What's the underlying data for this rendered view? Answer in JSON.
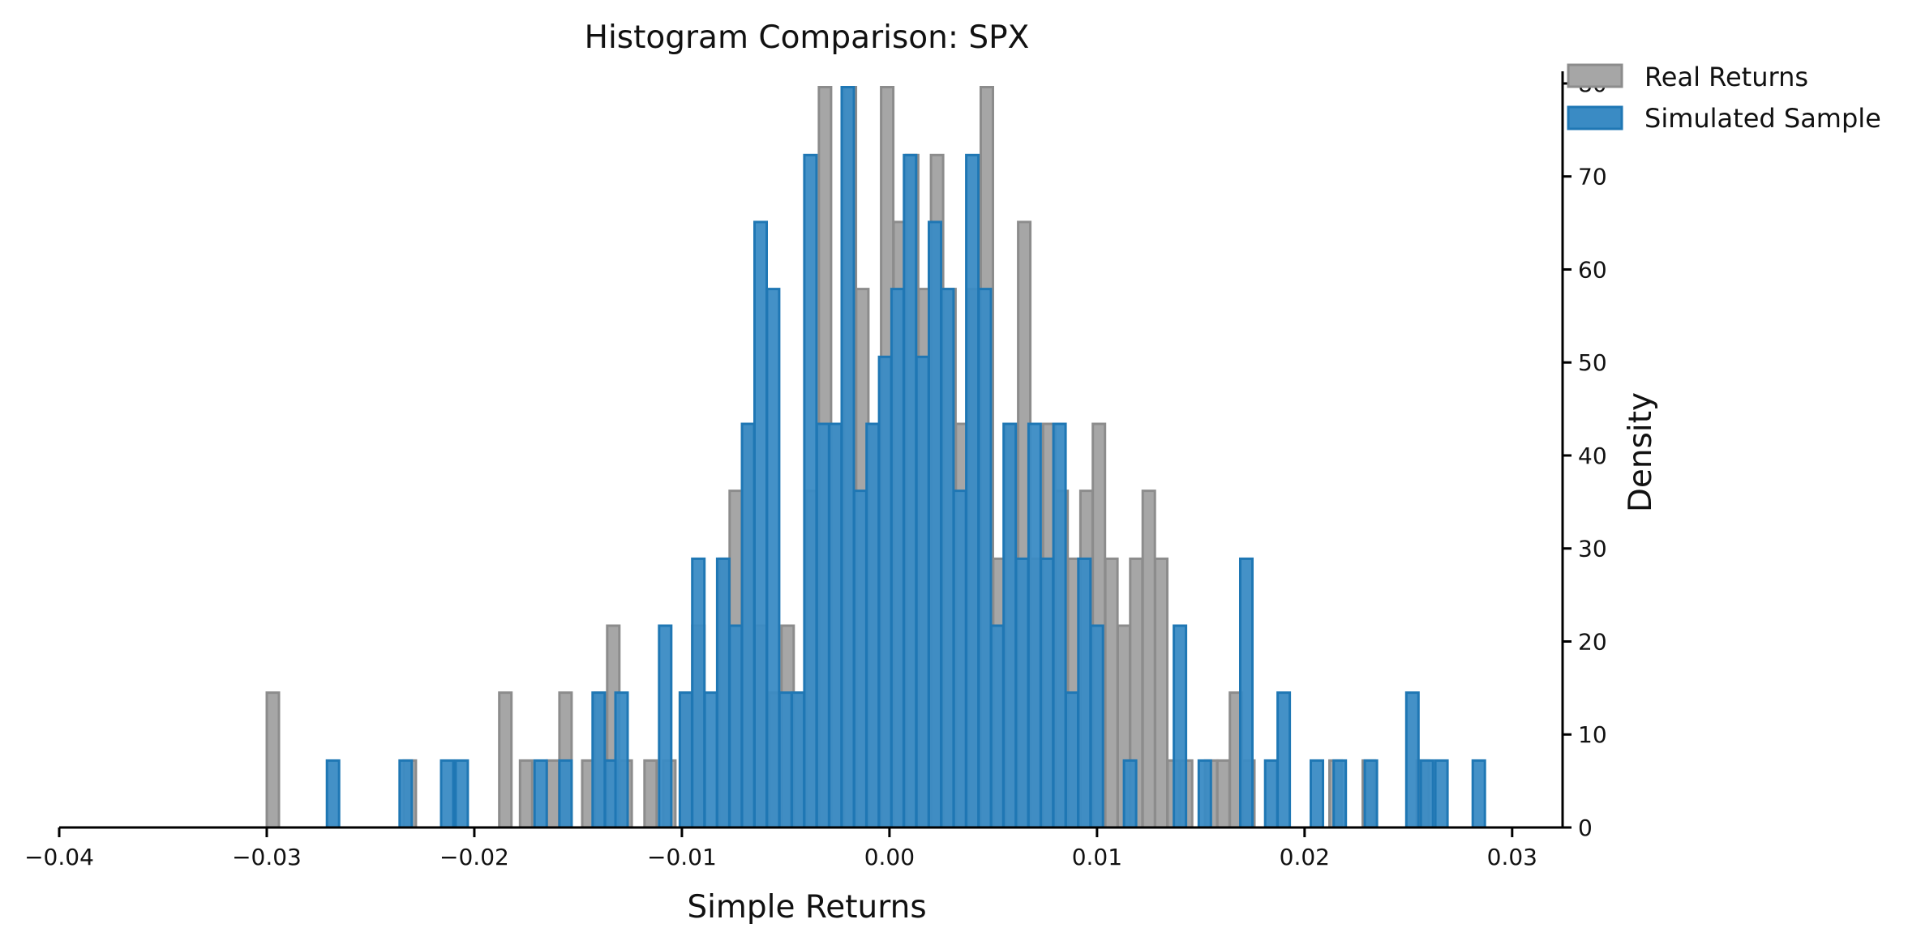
{
  "chart_data": {
    "type": "histogram",
    "title": "Histogram Comparison: SPX",
    "xlabel": "Simple Returns",
    "ylabel": "Density",
    "xlim": [
      -0.04,
      0.032
    ],
    "ylim": [
      0,
      82
    ],
    "xticks": [
      -0.04,
      -0.03,
      -0.02,
      -0.01,
      0.0,
      0.01,
      0.02,
      0.03
    ],
    "xtick_labels": [
      "−0.04",
      "−0.03",
      "−0.02",
      "−0.01",
      "0.00",
      "0.01",
      "0.02",
      "0.03"
    ],
    "yticks": [
      0,
      10,
      20,
      30,
      40,
      50,
      60,
      70,
      80
    ],
    "ytick_labels": [
      "0",
      "10",
      "20",
      "30",
      "40",
      "50",
      "60",
      "70",
      "80"
    ],
    "y_axis_side": "right",
    "grid": false,
    "legend_position": "top-right",
    "series": [
      {
        "name": "Real Returns",
        "style": "filled step histogram",
        "color": "#8c8c8c",
        "fill": "#a6a6a6",
        "bins": [
          [
            -0.03,
            14.5
          ],
          [
            -0.0234,
            7.2
          ],
          [
            -0.0188,
            14.5
          ],
          [
            -0.0178,
            7.2
          ],
          [
            -0.0165,
            7.2
          ],
          [
            -0.0159,
            14.5
          ],
          [
            -0.0148,
            7.2
          ],
          [
            -0.0142,
            14.5
          ],
          [
            -0.0136,
            21.7
          ],
          [
            -0.013,
            7.2
          ],
          [
            -0.0118,
            7.2
          ],
          [
            -0.0109,
            7.2
          ],
          [
            -0.0101,
            14.5
          ],
          [
            -0.0095,
            21.7
          ],
          [
            -0.0082,
            28.9
          ],
          [
            -0.0077,
            36.2
          ],
          [
            -0.0071,
            43.4
          ],
          [
            -0.0065,
            21.7
          ],
          [
            -0.0058,
            14.5
          ],
          [
            -0.0052,
            21.7
          ],
          [
            -0.0046,
            14.5
          ],
          [
            -0.004,
            36.2
          ],
          [
            -0.0034,
            79.6
          ],
          [
            -0.0028,
            43.4
          ],
          [
            -0.0022,
            79.6
          ],
          [
            -0.0016,
            57.9
          ],
          [
            -0.001,
            43.4
          ],
          [
            -0.0004,
            79.6
          ],
          [
            0.0002,
            65.1
          ],
          [
            0.0008,
            72.3
          ],
          [
            0.0014,
            57.9
          ],
          [
            0.002,
            72.3
          ],
          [
            0.0026,
            57.9
          ],
          [
            0.0032,
            43.4
          ],
          [
            0.0038,
            57.9
          ],
          [
            0.0044,
            79.6
          ],
          [
            0.005,
            28.9
          ],
          [
            0.0056,
            43.4
          ],
          [
            0.0062,
            65.1
          ],
          [
            0.0068,
            28.9
          ],
          [
            0.0074,
            43.4
          ],
          [
            0.008,
            36.2
          ],
          [
            0.0086,
            28.9
          ],
          [
            0.0092,
            36.2
          ],
          [
            0.0098,
            43.4
          ],
          [
            0.0104,
            28.9
          ],
          [
            0.011,
            21.7
          ],
          [
            0.0116,
            28.9
          ],
          [
            0.0122,
            36.2
          ],
          [
            0.0128,
            28.9
          ],
          [
            0.0134,
            7.2
          ],
          [
            0.014,
            7.2
          ],
          [
            0.0152,
            7.2
          ],
          [
            0.0158,
            7.2
          ],
          [
            0.0164,
            14.5
          ],
          [
            0.017,
            7.2
          ],
          [
            0.0212,
            7.2
          ],
          [
            0.0228,
            7.2
          ],
          [
            0.0254,
            7.2
          ]
        ]
      },
      {
        "name": "Simulated Sample",
        "style": "filled step histogram",
        "color": "#1f77b4",
        "fill": "#3a8bc4",
        "bins": [
          [
            -0.0271,
            7.2
          ],
          [
            -0.0236,
            7.2
          ],
          [
            -0.0216,
            7.2
          ],
          [
            -0.0209,
            7.2
          ],
          [
            -0.0171,
            7.2
          ],
          [
            -0.0159,
            7.2
          ],
          [
            -0.0143,
            14.5
          ],
          [
            -0.0137,
            7.2
          ],
          [
            -0.0132,
            14.5
          ],
          [
            -0.0111,
            21.7
          ],
          [
            -0.0101,
            14.5
          ],
          [
            -0.0095,
            28.9
          ],
          [
            -0.0089,
            14.5
          ],
          [
            -0.0083,
            28.9
          ],
          [
            -0.0077,
            21.7
          ],
          [
            -0.0071,
            43.4
          ],
          [
            -0.0065,
            65.1
          ],
          [
            -0.0059,
            57.9
          ],
          [
            -0.0053,
            14.5
          ],
          [
            -0.0047,
            14.5
          ],
          [
            -0.0041,
            72.3
          ],
          [
            -0.0035,
            43.4
          ],
          [
            -0.0029,
            43.4
          ],
          [
            -0.0023,
            79.6
          ],
          [
            -0.0017,
            36.2
          ],
          [
            -0.0011,
            43.4
          ],
          [
            -0.0005,
            50.6
          ],
          [
            0.0001,
            57.9
          ],
          [
            0.0007,
            72.3
          ],
          [
            0.0013,
            50.6
          ],
          [
            0.0019,
            65.1
          ],
          [
            0.0025,
            57.9
          ],
          [
            0.0031,
            36.2
          ],
          [
            0.0037,
            72.3
          ],
          [
            0.0043,
            57.9
          ],
          [
            0.0049,
            21.7
          ],
          [
            0.0055,
            43.4
          ],
          [
            0.0061,
            28.9
          ],
          [
            0.0067,
            43.4
          ],
          [
            0.0073,
            28.9
          ],
          [
            0.0079,
            43.4
          ],
          [
            0.0085,
            14.5
          ],
          [
            0.0091,
            28.9
          ],
          [
            0.0097,
            21.7
          ],
          [
            0.0113,
            7.2
          ],
          [
            0.0137,
            21.7
          ],
          [
            0.0149,
            7.2
          ],
          [
            0.0169,
            28.9
          ],
          [
            0.0181,
            7.2
          ],
          [
            0.0187,
            14.5
          ],
          [
            0.0203,
            7.2
          ],
          [
            0.0214,
            7.2
          ],
          [
            0.0229,
            7.2
          ],
          [
            0.0249,
            14.5
          ],
          [
            0.0256,
            7.2
          ],
          [
            0.0263,
            7.2
          ],
          [
            0.0281,
            7.2
          ]
        ]
      }
    ]
  }
}
